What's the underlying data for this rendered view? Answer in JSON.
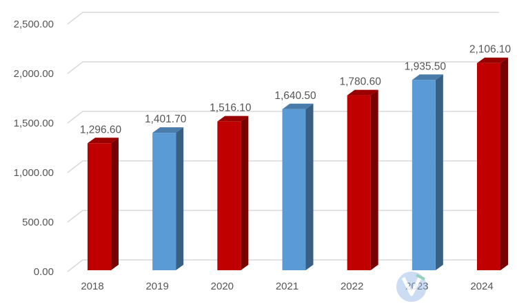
{
  "chart_data": {
    "type": "bar",
    "categories": [
      "2018",
      "2019",
      "2020",
      "2021",
      "2022",
      "2023",
      "2024"
    ],
    "values": [
      1296.6,
      1401.7,
      1516.1,
      1640.5,
      1780.6,
      1935.5,
      2106.1
    ],
    "value_labels": [
      "1,296.60",
      "1,401.70",
      "1,516.10",
      "1,640.50",
      "1,780.60",
      "1,935.50",
      "2,106.10"
    ],
    "bar_colors": [
      "#c00000",
      "#5b9bd5",
      "#c00000",
      "#5b9bd5",
      "#c00000",
      "#5b9bd5",
      "#c00000"
    ],
    "yticks": [
      0,
      500,
      1000,
      1500,
      2000,
      2500
    ],
    "ytick_labels": [
      "0.00",
      "500.00",
      "1,000.00",
      "1,500.00",
      "2,000.00",
      "2,500.00"
    ],
    "ylim": [
      0,
      2500
    ],
    "style": "3d-column",
    "grid": true,
    "legend": "none",
    "title": "",
    "xlabel": "",
    "ylabel": ""
  },
  "watermark": {
    "icon": "watermark-logo-icon",
    "colors": [
      "#8fb4e6",
      "#7ec9b2"
    ]
  }
}
